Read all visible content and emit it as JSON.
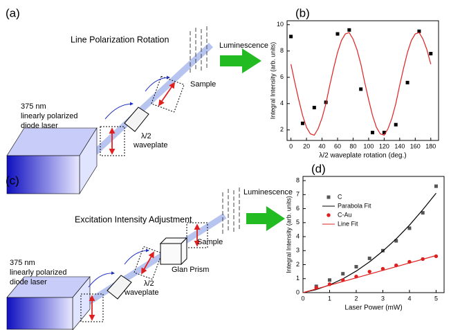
{
  "panel_a": {
    "label": "(a)",
    "title": "Line Polarization Rotation",
    "laser": [
      "375 nm",
      "linearly polarized",
      "diode laser"
    ],
    "waveplate": [
      "λ/2",
      "waveplate"
    ],
    "sample": "Sample",
    "luminescence": "Luminescence"
  },
  "panel_c": {
    "label": "(c)",
    "title": "Excitation Intensity Adjustment",
    "laser": [
      "375 nm",
      "linearly polarized",
      "diode laser"
    ],
    "waveplate": [
      "λ/2",
      "waveplate"
    ],
    "prism": "Glan Prism",
    "sample": "Sample",
    "luminescence": "Luminescence"
  },
  "chart_data": [
    {
      "type": "scatter",
      "label": "(b)",
      "x_label": "λ/2 waveplate rotation (deg.)",
      "y_label": "Integral Intensity (arb. units)",
      "x": [
        0,
        15,
        30,
        45,
        60,
        75,
        90,
        105,
        120,
        135,
        150,
        165,
        180
      ],
      "series": [
        {
          "color": "#000000",
          "style": "square",
          "values": [
            9.1,
            2.5,
            3.7,
            4.1,
            9.3,
            9.6,
            5.1,
            1.8,
            1.8,
            2.4,
            5.6,
            9.5,
            7.8
          ]
        },
        {
          "color": "#e02020",
          "style": "line",
          "x": [
            0,
            5,
            10,
            15,
            20,
            25,
            30,
            35,
            40,
            45,
            50,
            55,
            60,
            65,
            70,
            75,
            80,
            85,
            90,
            95,
            100,
            105,
            110,
            115,
            120,
            125,
            130,
            135,
            140,
            145,
            150,
            155,
            160,
            165,
            170,
            175,
            180
          ],
          "values": [
            7.0,
            5.6,
            4.3,
            3.1,
            2.2,
            1.7,
            1.6,
            2.1,
            2.9,
            4.0,
            5.4,
            6.7,
            7.9,
            8.8,
            9.3,
            9.4,
            8.9,
            8.1,
            7.0,
            5.6,
            4.3,
            3.1,
            2.2,
            1.7,
            1.6,
            2.1,
            2.9,
            4.0,
            5.4,
            6.7,
            7.9,
            8.8,
            9.3,
            9.4,
            8.9,
            8.1,
            7.0
          ]
        }
      ],
      "xlim": [
        -5,
        190
      ],
      "xticks": [
        0,
        20,
        40,
        60,
        80,
        100,
        120,
        140,
        160,
        180
      ],
      "ylim": [
        1.2,
        10.3
      ],
      "yticks": [
        2,
        4,
        6,
        8,
        10
      ]
    },
    {
      "type": "scatter",
      "label": "(d)",
      "x_label": "Laser Power (mW)",
      "y_label": "Integral Intensity (arb. units)",
      "legend": "upper left",
      "x": [
        0.5,
        1,
        1.5,
        2,
        2.5,
        3,
        3.5,
        4,
        4.5,
        5
      ],
      "series": [
        {
          "name": "C",
          "color": "#555555",
          "style": "square",
          "values": [
            0.45,
            0.9,
            1.35,
            1.85,
            2.45,
            3.0,
            3.7,
            4.6,
            5.7,
            7.6
          ]
        },
        {
          "name": "Parabola Fit",
          "color": "#000000",
          "style": "line",
          "x": [
            0,
            0.5,
            1,
            1.5,
            2,
            2.5,
            3,
            3.5,
            4,
            4.5,
            5
          ],
          "values": [
            0,
            0.22,
            0.55,
            0.99,
            1.54,
            2.2,
            2.97,
            3.84,
            4.82,
            5.92,
            7.1
          ]
        },
        {
          "name": "C-Au",
          "color": "#e02020",
          "style": "circle",
          "values": [
            0.35,
            0.6,
            0.9,
            1.15,
            1.5,
            1.7,
            1.95,
            2.2,
            2.4,
            2.6
          ]
        },
        {
          "name": "Line Fit",
          "color": "#e02020",
          "style": "line",
          "x": [
            0,
            5
          ],
          "values": [
            0,
            2.65
          ]
        }
      ],
      "xlim": [
        0,
        5.3
      ],
      "xticks": [
        0,
        1,
        2,
        3,
        4,
        5
      ],
      "ylim": [
        0,
        8.3
      ],
      "yticks": [
        0,
        1,
        2,
        3,
        4,
        5,
        6,
        7,
        8
      ]
    }
  ]
}
